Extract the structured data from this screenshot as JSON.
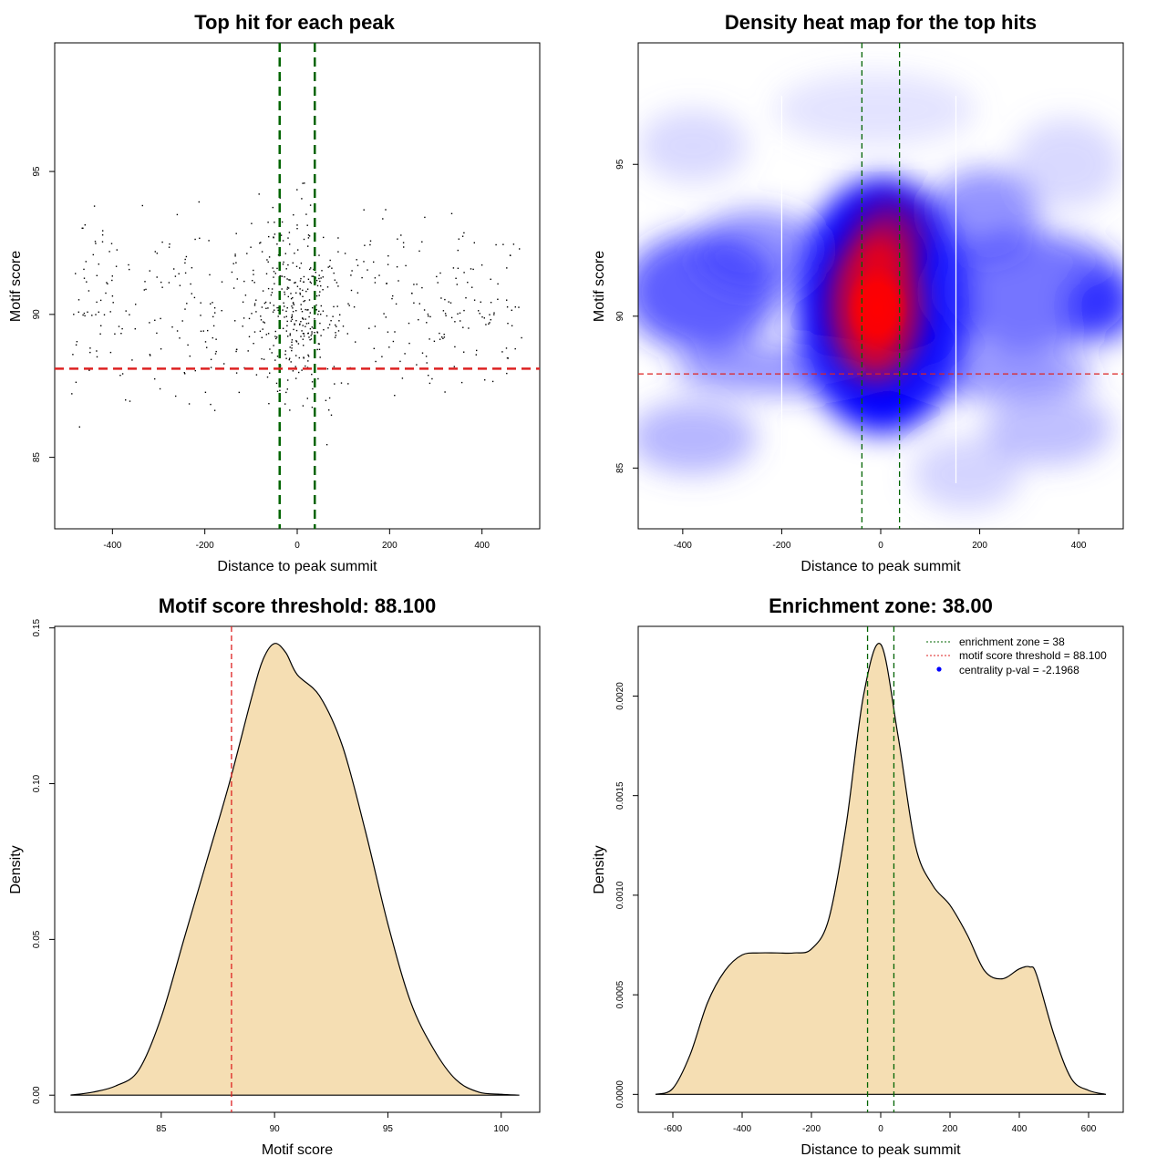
{
  "chart_data": [
    {
      "type": "scatter",
      "title": "Top hit for each peak",
      "xlabel": "Distance to peak summit",
      "ylabel": "Motif score",
      "xlim": [
        -525,
        525
      ],
      "ylim": [
        82.5,
        99.5
      ],
      "xticks": [
        -400,
        -200,
        0,
        200,
        400
      ],
      "yticks": [
        85,
        90,
        95
      ],
      "vlines": [
        -38,
        38
      ],
      "hline": 88.1,
      "points_note": "approx. 700 individual peak top-hit points"
    },
    {
      "type": "heatmap",
      "title": "Density heat map for the top hits",
      "xlabel": "Distance to peak summit",
      "ylabel": "Motif score",
      "xlim": [
        -490,
        490
      ],
      "ylim": [
        83,
        99
      ],
      "xticks": [
        -400,
        -200,
        0,
        200,
        400
      ],
      "yticks": [
        85,
        90,
        95
      ],
      "vlines": [
        -38,
        38
      ],
      "white_lines": [
        -200,
        152
      ],
      "hline": 88.1,
      "colors": [
        "#ffffff",
        "#0000ff",
        "#ff0000"
      ],
      "density_peak": {
        "x": 0,
        "y": 90
      }
    },
    {
      "type": "area",
      "title": "Motif score threshold: 88.100",
      "xlabel": "Motif score",
      "ylabel": "Density",
      "xlim": [
        80.3,
        101.7
      ],
      "ylim": [
        -0.0055,
        0.1505
      ],
      "xticks": [
        85,
        90,
        95,
        100
      ],
      "yticks": [
        0.0,
        0.05,
        0.1,
        0.15
      ],
      "ytick_labels": [
        "0.00",
        "0.05",
        "0.10",
        "0.15"
      ],
      "vline": 88.1,
      "fill": "#f5deb3",
      "x": [
        81,
        82,
        83,
        84,
        85,
        86,
        87,
        88,
        89,
        89.5,
        90,
        90.5,
        91,
        92,
        93,
        94,
        95,
        96,
        97,
        98,
        99,
        100,
        100.8
      ],
      "y": [
        0.0,
        0.001,
        0.003,
        0.008,
        0.025,
        0.05,
        0.075,
        0.1,
        0.128,
        0.14,
        0.145,
        0.142,
        0.135,
        0.128,
        0.112,
        0.085,
        0.055,
        0.03,
        0.015,
        0.005,
        0.001,
        0.0003,
        0.0
      ]
    },
    {
      "type": "area",
      "title": "Enrichment zone: 38.00",
      "xlabel": "Distance to peak summit",
      "ylabel": "Density",
      "xlim": [
        -700,
        700
      ],
      "ylim": [
        -9e-05,
        0.00235
      ],
      "xticks": [
        -600,
        -400,
        -200,
        0,
        200,
        400,
        600
      ],
      "yticks": [
        0.0,
        0.0005,
        0.001,
        0.0015,
        0.002
      ],
      "ytick_labels": [
        "0.0000",
        "0.0005",
        "0.0010",
        "0.0015",
        "0.0020"
      ],
      "vlines": [
        -38,
        38
      ],
      "fill": "#f5deb3",
      "x": [
        -650,
        -600,
        -550,
        -500,
        -450,
        -400,
        -350,
        -300,
        -250,
        -200,
        -150,
        -100,
        -50,
        0,
        50,
        100,
        150,
        200,
        250,
        300,
        350,
        400,
        430,
        450,
        500,
        550,
        600,
        650
      ],
      "y": [
        0.0,
        3e-05,
        0.0002,
        0.00046,
        0.00062,
        0.0007,
        0.00071,
        0.00071,
        0.00071,
        0.00073,
        0.00088,
        0.00135,
        0.002,
        0.00226,
        0.0018,
        0.00125,
        0.00105,
        0.00095,
        0.0008,
        0.00062,
        0.00058,
        0.00063,
        0.00064,
        0.0006,
        0.0003,
        8e-05,
        2e-05,
        0.0
      ],
      "legend": [
        {
          "label": "enrichment zone = 38",
          "color": "#006400",
          "style": "dotted-line"
        },
        {
          "label": "motif score threshold = 88.100",
          "color": "#dd2222",
          "style": "dotted-line"
        },
        {
          "label": "centrality p-val = -2.1968",
          "color": "#0000ff",
          "style": "point"
        }
      ],
      "legend_position": "top-right"
    }
  ]
}
